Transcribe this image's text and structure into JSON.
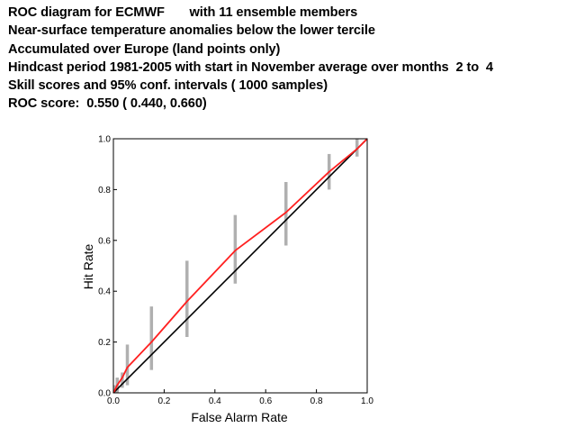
{
  "header": {
    "lines": [
      "ROC diagram for ECMWF       with 11 ensemble members",
      "Near-surface temperature anomalies below the lower tercile",
      "Accumulated over Europe (land points only)",
      "Hindcast period 1981-2005 with start in November average over months  2 to  4",
      "Skill scores and 95% conf. intervals ( 1000 samples)",
      "ROC score:  0.550 ( 0.440, 0.660)"
    ]
  },
  "chart_data": {
    "type": "line",
    "xlabel": "False Alarm Rate",
    "ylabel": "Hit Rate",
    "xlim": [
      0,
      1
    ],
    "ylim": [
      0,
      1
    ],
    "xticks": [
      "0.0",
      "0.2",
      "0.4",
      "0.6",
      "0.8",
      "1.0"
    ],
    "yticks": [
      "0.0",
      "0.2",
      "0.4",
      "0.6",
      "0.8",
      "1.0"
    ],
    "grid": false,
    "colors": {
      "roc": "#ff2020",
      "diagonal": "#000000",
      "interval": "#b0b0b0"
    },
    "roc_curve": [
      {
        "x": 0.0,
        "y": 0.0
      },
      {
        "x": 0.005,
        "y": 0.01
      },
      {
        "x": 0.015,
        "y": 0.03
      },
      {
        "x": 0.035,
        "y": 0.06
      },
      {
        "x": 0.055,
        "y": 0.1
      },
      {
        "x": 0.15,
        "y": 0.2
      },
      {
        "x": 0.29,
        "y": 0.36
      },
      {
        "x": 0.48,
        "y": 0.56
      },
      {
        "x": 0.68,
        "y": 0.71
      },
      {
        "x": 0.85,
        "y": 0.87
      },
      {
        "x": 0.96,
        "y": 0.96
      },
      {
        "x": 1.0,
        "y": 1.0
      }
    ],
    "confidence_intervals": [
      {
        "x": 0.005,
        "low": 0.0,
        "high": 0.03
      },
      {
        "x": 0.015,
        "low": 0.0,
        "high": 0.06
      },
      {
        "x": 0.035,
        "low": 0.02,
        "high": 0.08
      },
      {
        "x": 0.055,
        "low": 0.03,
        "high": 0.19
      },
      {
        "x": 0.15,
        "low": 0.09,
        "high": 0.34
      },
      {
        "x": 0.29,
        "low": 0.22,
        "high": 0.52
      },
      {
        "x": 0.48,
        "low": 0.43,
        "high": 0.7
      },
      {
        "x": 0.68,
        "low": 0.58,
        "high": 0.83
      },
      {
        "x": 0.85,
        "low": 0.8,
        "high": 0.94
      },
      {
        "x": 0.96,
        "low": 0.93,
        "high": 1.0
      }
    ],
    "diagonal": [
      {
        "x": 0,
        "y": 0
      },
      {
        "x": 1,
        "y": 1
      }
    ]
  }
}
